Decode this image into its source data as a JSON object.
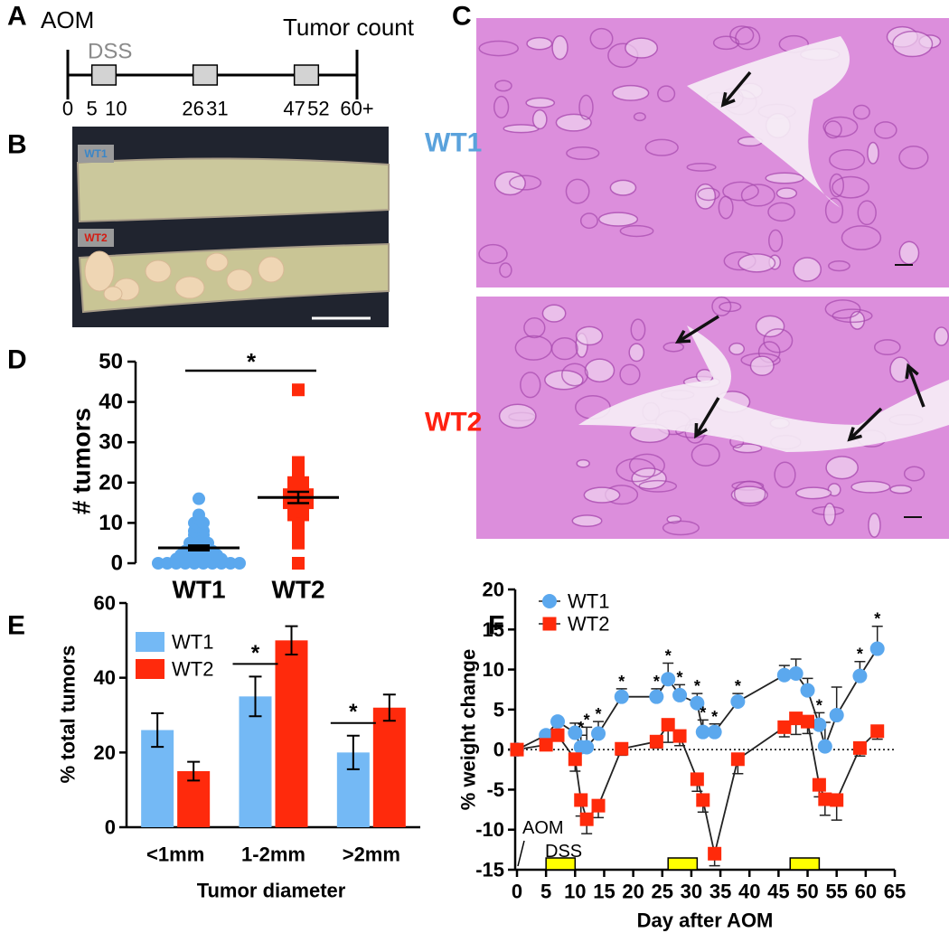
{
  "panel_labels": [
    "A",
    "B",
    "C",
    "D",
    "E",
    "F"
  ],
  "timeline": {
    "start_label": "AOM",
    "end_label": "Tumor count",
    "dss_label": "DSS",
    "ticks": [
      0,
      5,
      10,
      26,
      31,
      47,
      52,
      {
        "value": 60,
        "label": "60+"
      }
    ],
    "dss_periods": [
      [
        5,
        10
      ],
      [
        26,
        31
      ],
      [
        47,
        52
      ]
    ]
  },
  "photo": {
    "labels": [
      "WT1",
      "WT2"
    ]
  },
  "histology": {
    "labels": [
      "WT1",
      "WT2"
    ]
  },
  "chart_data": [
    {
      "type": "strip",
      "y_label": "# tumors",
      "categories": [
        "WT1",
        "WT2"
      ],
      "significance": "*",
      "series": [
        {
          "color": "#5ba8ee",
          "marker": "circle",
          "mean": 3.8,
          "sem": 0.6,
          "values": [
            0,
            0,
            0,
            0,
            0,
            0,
            0,
            0,
            0,
            0,
            1,
            1,
            1,
            1,
            1,
            1,
            2,
            2,
            2,
            2,
            2,
            3,
            3,
            3,
            3,
            4,
            4,
            4,
            5,
            5,
            5,
            6,
            6,
            7,
            7,
            8,
            8,
            9,
            10,
            10,
            11,
            12,
            16
          ]
        },
        {
          "color": "#ff2a0a",
          "marker": "square",
          "mean": 16.3,
          "sem": 1.4,
          "values": [
            0,
            5,
            8,
            10,
            11,
            12,
            12,
            13,
            13,
            14,
            14,
            15,
            15,
            15,
            16,
            16,
            16,
            17,
            17,
            17,
            18,
            18,
            19,
            19,
            20,
            20,
            21,
            22,
            23,
            25,
            43
          ]
        }
      ],
      "ylim": [
        0,
        50
      ],
      "yticks": [
        0,
        10,
        20,
        30,
        40,
        50
      ]
    },
    {
      "type": "bar",
      "y_label": "% total tumors",
      "x_label": "Tumor diameter",
      "categories": [
        "<1mm",
        "1-2mm",
        ">2mm"
      ],
      "significance": [
        null,
        "*",
        "*"
      ],
      "series": [
        {
          "name": "WT1",
          "color": "#74b9f5",
          "values": [
            26,
            35,
            20
          ],
          "errors": [
            4.5,
            5.3,
            4.5
          ]
        },
        {
          "name": "WT2",
          "color": "#ff2a0c",
          "values": [
            15,
            50,
            32
          ],
          "errors": [
            2.5,
            3.8,
            3.5
          ]
        }
      ],
      "ylim": [
        0,
        60
      ],
      "yticks": [
        0,
        20,
        40,
        60
      ],
      "legend": "top-left"
    },
    {
      "type": "line",
      "y_label": "% weight change",
      "x_label": "Day after AOM",
      "x": [
        0,
        5,
        7,
        10,
        11,
        12,
        14,
        18,
        24,
        26,
        28,
        31,
        32,
        34,
        38,
        46,
        48,
        50,
        52,
        53,
        55,
        59,
        62
      ],
      "significance": [
        null,
        null,
        null,
        null,
        "*",
        "*",
        "*",
        "*",
        "*",
        "*",
        "*",
        "*",
        "*",
        "*",
        "*",
        null,
        null,
        null,
        "*",
        null,
        null,
        "*",
        "*"
      ],
      "series": [
        {
          "name": "WT1",
          "color": "#5ba8ee",
          "marker": "circle",
          "error_bars": "upper",
          "values": [
            0,
            1.8,
            3.5,
            2.1,
            0.3,
            0.3,
            2,
            6.6,
            6.6,
            8.8,
            6.8,
            5.8,
            2.2,
            2.2,
            6,
            9.3,
            9.5,
            7.4,
            3.1,
            0.4,
            4.3,
            9.2,
            12.6
          ],
          "errors": [
            0.3,
            0.5,
            0.5,
            1.2,
            1.5,
            2.5,
            1.5,
            1,
            1,
            2,
            1.3,
            1.2,
            1.5,
            1,
            1,
            1.2,
            1.8,
            1.5,
            1.5,
            3,
            3.5,
            1.8,
            2.8
          ]
        },
        {
          "name": "WT2",
          "color": "#ff2a0a",
          "marker": "square",
          "error_bars": "lower",
          "values": [
            0,
            0.6,
            1.8,
            -1.2,
            -6.3,
            -8.7,
            -7,
            0.1,
            1,
            3.1,
            1.7,
            -3.7,
            -6.3,
            -13,
            -1.2,
            2.8,
            3.9,
            3.5,
            -4.4,
            -6.2,
            -6.3,
            0.2,
            2.3
          ],
          "errors": [
            0.3,
            0.5,
            0.6,
            1.5,
            2,
            1.8,
            1.5,
            0.8,
            0.8,
            2.2,
            1.2,
            1.5,
            1.5,
            1.5,
            1.8,
            1.2,
            2,
            1.5,
            1.5,
            2,
            2.5,
            1,
            1
          ]
        }
      ],
      "annotations": {
        "aom": "AOM",
        "dss": "DSS"
      },
      "dss_periods": [
        [
          5,
          10
        ],
        [
          26,
          31
        ],
        [
          47,
          52
        ]
      ],
      "xlim": [
        0,
        65
      ],
      "xticks": [
        0,
        5,
        10,
        15,
        20,
        25,
        30,
        35,
        40,
        45,
        50,
        55,
        60,
        65
      ],
      "ylim": [
        -15,
        20
      ],
      "yticks": [
        -15,
        -10,
        -5,
        0,
        5,
        10,
        15,
        20
      ],
      "zero_line": "dotted",
      "legend": "top-left"
    }
  ]
}
